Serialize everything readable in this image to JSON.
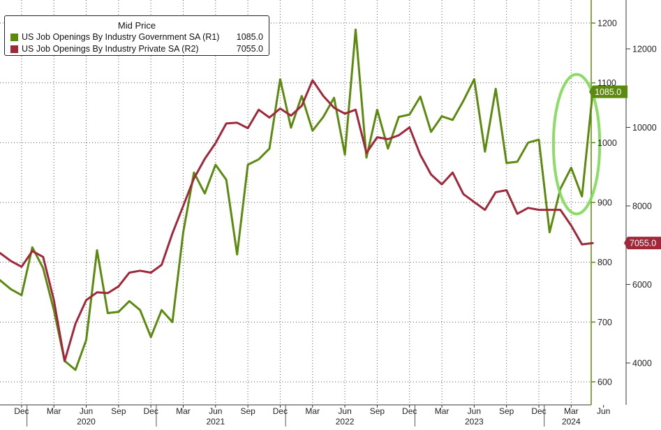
{
  "chart_data": {
    "type": "line",
    "legend": {
      "title": "Mid Price",
      "placement": "top-left",
      "entries": [
        {
          "label": "US Job Openings By Industry Government SA  (R1)",
          "value": "1085.0",
          "color": "#5c8a0f"
        },
        {
          "label": "US Job Openings By Industry Private SA  (R2)",
          "value": "7055.0",
          "color": "#a0283a"
        }
      ]
    },
    "x_months": [
      "2019-10",
      "2019-11",
      "2019-12",
      "2020-01",
      "2020-02",
      "2020-03",
      "2020-04",
      "2020-05",
      "2020-06",
      "2020-07",
      "2020-08",
      "2020-09",
      "2020-10",
      "2020-11",
      "2020-12",
      "2021-01",
      "2021-02",
      "2021-03",
      "2021-04",
      "2021-05",
      "2021-06",
      "2021-07",
      "2021-08",
      "2021-09",
      "2021-10",
      "2021-11",
      "2021-12",
      "2022-01",
      "2022-02",
      "2022-03",
      "2022-04",
      "2022-05",
      "2022-06",
      "2022-07",
      "2022-08",
      "2022-09",
      "2022-10",
      "2022-11",
      "2022-12",
      "2023-01",
      "2023-02",
      "2023-03",
      "2023-04",
      "2023-05",
      "2023-06",
      "2023-07",
      "2023-08",
      "2023-09",
      "2023-10",
      "2023-11",
      "2023-12",
      "2024-01",
      "2024-02",
      "2024-03",
      "2024-04",
      "2024-05"
    ],
    "x_axis": {
      "month_ticks": [
        {
          "date": "2019-12",
          "label": "Dec"
        },
        {
          "date": "2020-03",
          "label": "Mar"
        },
        {
          "date": "2020-06",
          "label": "Jun"
        },
        {
          "date": "2020-09",
          "label": "Sep"
        },
        {
          "date": "2020-12",
          "label": "Dec"
        },
        {
          "date": "2021-03",
          "label": "Mar"
        },
        {
          "date": "2021-06",
          "label": "Jun"
        },
        {
          "date": "2021-09",
          "label": "Sep"
        },
        {
          "date": "2021-12",
          "label": "Dec"
        },
        {
          "date": "2022-03",
          "label": "Mar"
        },
        {
          "date": "2022-06",
          "label": "Jun"
        },
        {
          "date": "2022-09",
          "label": "Sep"
        },
        {
          "date": "2022-12",
          "label": "Dec"
        },
        {
          "date": "2023-03",
          "label": "Mar"
        },
        {
          "date": "2023-06",
          "label": "Jun"
        },
        {
          "date": "2023-09",
          "label": "Sep"
        },
        {
          "date": "2023-12",
          "label": "Dec"
        },
        {
          "date": "2024-03",
          "label": "Mar"
        },
        {
          "date": "2024-06",
          "label": "Jun"
        }
      ],
      "year_labels": [
        {
          "date": "2020-06",
          "label": "2020"
        },
        {
          "date": "2021-06",
          "label": "2021"
        },
        {
          "date": "2022-06",
          "label": "2022"
        },
        {
          "date": "2023-06",
          "label": "2023"
        },
        {
          "date": "2024-03",
          "label": "2024"
        }
      ],
      "year_dividers": [
        "2020-01",
        "2021-01",
        "2022-01",
        "2023-01",
        "2024-01"
      ],
      "range": [
        "2019-10",
        "2024-07"
      ]
    },
    "y_axis_left": {
      "series": "Government (R1)",
      "range": [
        580,
        1240
      ],
      "ticks": [
        {
          "value": 600,
          "label": "600"
        },
        {
          "value": 700,
          "label": "700"
        },
        {
          "value": 800,
          "label": "800"
        },
        {
          "value": 900,
          "label": "900"
        },
        {
          "value": 1000,
          "label": "1000"
        },
        {
          "value": 1100,
          "label": "1100"
        },
        {
          "value": 1200,
          "label": "1200"
        }
      ]
    },
    "y_axis_right": {
      "series": "Private (R2)",
      "range": [
        3200,
        13000
      ],
      "ticks": [
        {
          "value": 4000,
          "label": "4000"
        },
        {
          "value": 6000,
          "label": "6000"
        },
        {
          "value": 8000,
          "label": "8000"
        },
        {
          "value": 10000,
          "label": "10000"
        },
        {
          "value": 12000,
          "label": "12000"
        }
      ]
    },
    "grid": true,
    "series": [
      {
        "name": "US Job Openings By Industry Government SA",
        "axis": "R1",
        "color": "#5c8a0f",
        "end_label": "1085.0",
        "values": [
          770,
          755,
          745,
          825,
          790,
          720,
          635,
          620,
          670,
          820,
          715,
          717,
          735,
          720,
          675,
          720,
          700,
          850,
          950,
          915,
          963,
          938,
          813,
          963,
          972,
          990,
          1106,
          1025,
          1078,
          1020,
          1043,
          1075,
          980,
          1189,
          975,
          1055,
          990,
          1043,
          1047,
          1077,
          1018,
          1044,
          1038,
          1070,
          1106,
          985,
          1090,
          966,
          968,
          1000,
          1005,
          850,
          923,
          958,
          910,
          1085
        ]
      },
      {
        "name": "US Job Openings By Industry Private SA",
        "axis": "R2",
        "color": "#a0283a",
        "end_label": "7055.0",
        "values": [
          6800,
          6600,
          6450,
          6850,
          6700,
          5600,
          4050,
          5000,
          5600,
          5800,
          5780,
          5950,
          6300,
          6350,
          6300,
          6500,
          7300,
          8000,
          8700,
          9200,
          9600,
          10100,
          10120,
          9980,
          10450,
          10250,
          10480,
          10300,
          10550,
          11200,
          10800,
          10500,
          10350,
          10450,
          9350,
          9750,
          9700,
          9800,
          10000,
          9300,
          8800,
          8550,
          8850,
          8300,
          8100,
          7900,
          8350,
          8400,
          7800,
          7950,
          7900,
          7900,
          7900,
          7500,
          7020,
          7055
        ]
      }
    ],
    "annotations": [
      {
        "type": "ellipse",
        "color": "#7ed957",
        "around_series": "Government",
        "from": "2024-02",
        "to": "2024-05"
      }
    ]
  }
}
